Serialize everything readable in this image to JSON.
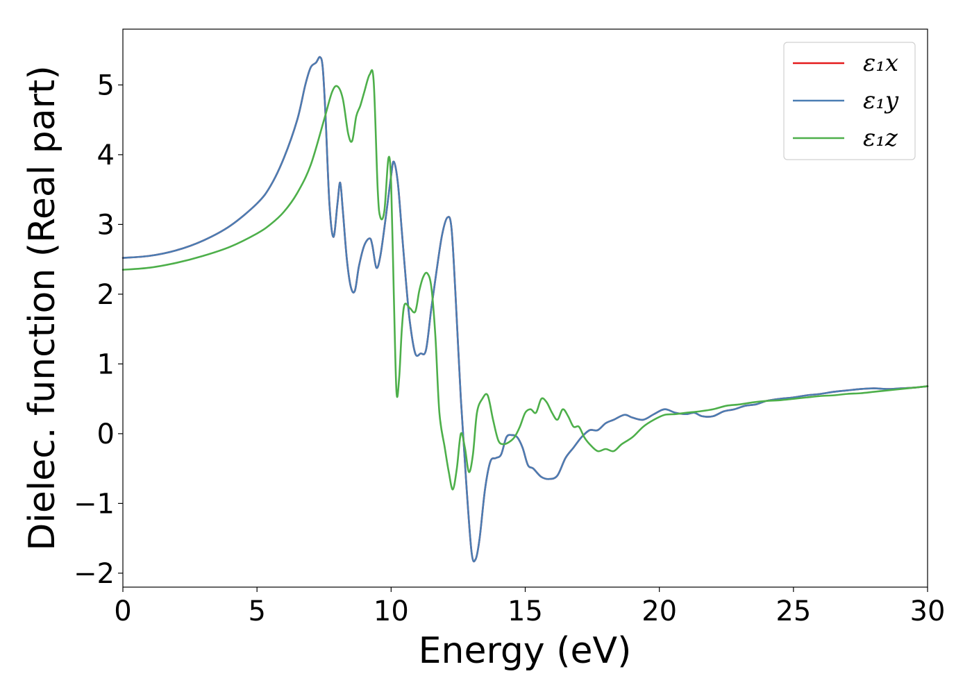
{
  "chart_data": {
    "type": "line",
    "xlabel": "Energy (eV)",
    "ylabel": "Dielec. function (Real part)",
    "xlim": [
      0,
      30
    ],
    "ylim": [
      -2.2,
      5.8
    ],
    "xticks": [
      0,
      5,
      10,
      15,
      20,
      25,
      30
    ],
    "yticks": [
      -2,
      -1,
      0,
      1,
      2,
      3,
      4,
      5
    ],
    "xtick_labels": [
      "0",
      "5",
      "10",
      "15",
      "20",
      "25",
      "30"
    ],
    "ytick_labels": [
      "−2",
      "−1",
      "0",
      "1",
      "2",
      "3",
      "4",
      "5"
    ],
    "grid": false,
    "legend_position": "top-right",
    "series": [
      {
        "name": "ε₁x",
        "color": "#e41a1c",
        "x": [
          0,
          1,
          2,
          3,
          4,
          5,
          5.5,
          6,
          6.5,
          6.8,
          7.0,
          7.2,
          7.35,
          7.45,
          7.55,
          7.7,
          7.85,
          8.0,
          8.1,
          8.2,
          8.35,
          8.5,
          8.65,
          8.8,
          9.0,
          9.2,
          9.3,
          9.45,
          9.6,
          9.8,
          10.0,
          10.1,
          10.25,
          10.4,
          10.55,
          10.7,
          10.9,
          11.1,
          11.3,
          11.5,
          11.7,
          11.9,
          12.1,
          12.25,
          12.4,
          12.6,
          12.8,
          13.0,
          13.15,
          13.3,
          13.5,
          13.7,
          13.9,
          14.1,
          14.3,
          14.5,
          14.7,
          14.9,
          15.1,
          15.3,
          15.6,
          15.9,
          16.2,
          16.5,
          16.8,
          17.1,
          17.4,
          17.7,
          18.0,
          18.3,
          18.7,
          19.0,
          19.4,
          19.8,
          20.2,
          20.6,
          21.0,
          21.3,
          21.6,
          22.0,
          22.4,
          22.8,
          23.2,
          23.6,
          24.0,
          24.5,
          25.0,
          25.5,
          26.0,
          26.5,
          27.0,
          27.5,
          28.0,
          28.5,
          29.0,
          29.5,
          30.0
        ],
        "y": [
          2.52,
          2.55,
          2.63,
          2.77,
          2.98,
          3.3,
          3.55,
          3.95,
          4.5,
          5.0,
          5.25,
          5.32,
          5.4,
          5.25,
          4.6,
          3.3,
          2.82,
          3.3,
          3.6,
          3.2,
          2.5,
          2.1,
          2.05,
          2.4,
          2.7,
          2.8,
          2.7,
          2.38,
          2.55,
          3.1,
          3.7,
          3.9,
          3.6,
          2.9,
          2.2,
          1.6,
          1.15,
          1.15,
          1.2,
          1.8,
          2.35,
          2.85,
          3.1,
          2.95,
          2.0,
          0.5,
          -0.7,
          -1.7,
          -1.8,
          -1.5,
          -0.8,
          -0.4,
          -0.35,
          -0.3,
          -0.05,
          -0.02,
          -0.05,
          -0.2,
          -0.45,
          -0.5,
          -0.62,
          -0.65,
          -0.6,
          -0.35,
          -0.2,
          -0.05,
          0.05,
          0.05,
          0.15,
          0.2,
          0.27,
          0.23,
          0.2,
          0.28,
          0.35,
          0.3,
          0.28,
          0.3,
          0.25,
          0.25,
          0.32,
          0.35,
          0.4,
          0.42,
          0.47,
          0.5,
          0.52,
          0.55,
          0.57,
          0.6,
          0.62,
          0.64,
          0.65,
          0.64,
          0.65,
          0.66,
          0.68
        ]
      },
      {
        "name": "ε₁y",
        "color": "#4a7db3",
        "x": [
          0,
          1,
          2,
          3,
          4,
          5,
          5.5,
          6,
          6.5,
          6.8,
          7.0,
          7.2,
          7.35,
          7.45,
          7.55,
          7.7,
          7.85,
          8.0,
          8.1,
          8.2,
          8.35,
          8.5,
          8.65,
          8.8,
          9.0,
          9.2,
          9.3,
          9.45,
          9.6,
          9.8,
          10.0,
          10.1,
          10.25,
          10.4,
          10.55,
          10.7,
          10.9,
          11.1,
          11.3,
          11.5,
          11.7,
          11.9,
          12.1,
          12.25,
          12.4,
          12.6,
          12.8,
          13.0,
          13.15,
          13.3,
          13.5,
          13.7,
          13.9,
          14.1,
          14.3,
          14.5,
          14.7,
          14.9,
          15.1,
          15.3,
          15.6,
          15.9,
          16.2,
          16.5,
          16.8,
          17.1,
          17.4,
          17.7,
          18.0,
          18.3,
          18.7,
          19.0,
          19.4,
          19.8,
          20.2,
          20.6,
          21.0,
          21.3,
          21.6,
          22.0,
          22.4,
          22.8,
          23.2,
          23.6,
          24.0,
          24.5,
          25.0,
          25.5,
          26.0,
          26.5,
          27.0,
          27.5,
          28.0,
          28.5,
          29.0,
          29.5,
          30.0
        ],
        "y": [
          2.52,
          2.55,
          2.63,
          2.77,
          2.98,
          3.3,
          3.55,
          3.95,
          4.5,
          5.0,
          5.25,
          5.32,
          5.4,
          5.25,
          4.6,
          3.3,
          2.82,
          3.3,
          3.6,
          3.2,
          2.5,
          2.1,
          2.05,
          2.4,
          2.7,
          2.8,
          2.7,
          2.38,
          2.55,
          3.1,
          3.7,
          3.9,
          3.6,
          2.9,
          2.2,
          1.6,
          1.15,
          1.15,
          1.2,
          1.8,
          2.35,
          2.85,
          3.1,
          2.95,
          2.0,
          0.5,
          -0.7,
          -1.7,
          -1.8,
          -1.5,
          -0.8,
          -0.4,
          -0.35,
          -0.3,
          -0.05,
          -0.02,
          -0.05,
          -0.2,
          -0.45,
          -0.5,
          -0.62,
          -0.65,
          -0.6,
          -0.35,
          -0.2,
          -0.05,
          0.05,
          0.05,
          0.15,
          0.2,
          0.27,
          0.23,
          0.2,
          0.28,
          0.35,
          0.3,
          0.28,
          0.3,
          0.25,
          0.25,
          0.32,
          0.35,
          0.4,
          0.42,
          0.47,
          0.5,
          0.52,
          0.55,
          0.57,
          0.6,
          0.62,
          0.64,
          0.65,
          0.64,
          0.65,
          0.66,
          0.68
        ]
      },
      {
        "name": "ε₁z",
        "color": "#4daf4a",
        "x": [
          0,
          1,
          2,
          3,
          4,
          5,
          5.5,
          6,
          6.5,
          7.0,
          7.5,
          7.8,
          8.0,
          8.2,
          8.4,
          8.55,
          8.7,
          8.85,
          9.0,
          9.2,
          9.35,
          9.5,
          9.6,
          9.75,
          9.9,
          10.0,
          10.1,
          10.2,
          10.3,
          10.4,
          10.5,
          10.7,
          10.9,
          11.05,
          11.2,
          11.35,
          11.5,
          11.65,
          11.8,
          12.0,
          12.15,
          12.3,
          12.45,
          12.6,
          12.75,
          12.9,
          13.05,
          13.2,
          13.4,
          13.6,
          13.8,
          14.0,
          14.2,
          14.4,
          14.6,
          14.8,
          15.0,
          15.2,
          15.4,
          15.6,
          15.8,
          16.0,
          16.2,
          16.4,
          16.6,
          16.8,
          17.0,
          17.2,
          17.4,
          17.7,
          18.0,
          18.3,
          18.6,
          19.0,
          19.4,
          19.8,
          20.2,
          20.6,
          21.0,
          21.5,
          22.0,
          22.5,
          23.0,
          23.5,
          24.0,
          24.5,
          25.0,
          25.5,
          26.0,
          26.5,
          27.0,
          27.5,
          28.0,
          28.5,
          29.0,
          29.5,
          30.0
        ],
        "y": [
          2.35,
          2.38,
          2.45,
          2.55,
          2.68,
          2.87,
          3.0,
          3.18,
          3.45,
          3.85,
          4.5,
          4.9,
          4.98,
          4.8,
          4.3,
          4.2,
          4.55,
          4.7,
          4.9,
          5.15,
          5.05,
          3.5,
          3.1,
          3.2,
          3.95,
          3.6,
          2.0,
          0.6,
          0.8,
          1.5,
          1.85,
          1.8,
          1.75,
          2.05,
          2.25,
          2.3,
          2.1,
          1.4,
          0.3,
          -0.2,
          -0.55,
          -0.8,
          -0.5,
          0.0,
          -0.2,
          -0.55,
          -0.3,
          0.3,
          0.5,
          0.55,
          0.2,
          -0.1,
          -0.15,
          -0.12,
          -0.05,
          0.1,
          0.3,
          0.35,
          0.3,
          0.5,
          0.45,
          0.3,
          0.2,
          0.35,
          0.25,
          0.1,
          0.1,
          -0.05,
          -0.15,
          -0.25,
          -0.22,
          -0.25,
          -0.15,
          -0.05,
          0.1,
          0.2,
          0.27,
          0.28,
          0.3,
          0.32,
          0.35,
          0.4,
          0.42,
          0.45,
          0.47,
          0.48,
          0.5,
          0.52,
          0.54,
          0.55,
          0.57,
          0.58,
          0.6,
          0.62,
          0.64,
          0.66,
          0.68
        ]
      }
    ]
  }
}
